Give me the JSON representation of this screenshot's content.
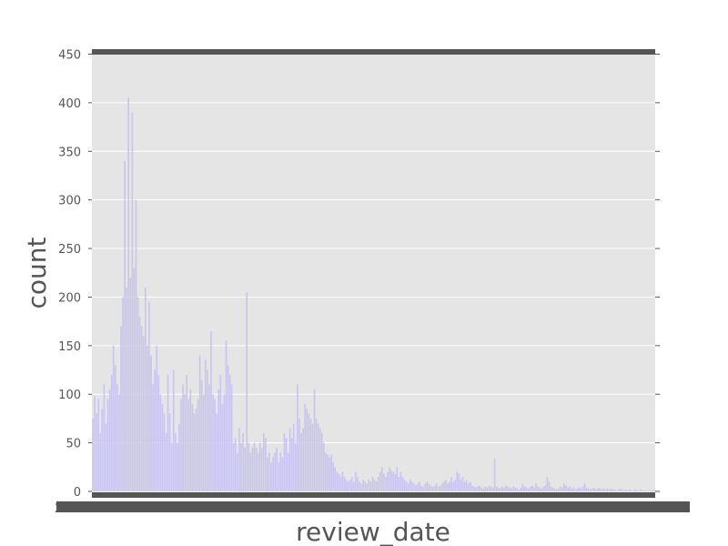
{
  "chart_data": {
    "type": "bar",
    "title": "",
    "xlabel": "review_date",
    "ylabel": "count",
    "ylim": [
      0,
      450
    ],
    "yticks": [
      0,
      50,
      100,
      150,
      200,
      250,
      300,
      350,
      400,
      450
    ],
    "grid": true,
    "legend": "none",
    "x_tick_labels_legible": false,
    "x_tick_label_edge_left": "2",
    "x_tick_label_edge_right": "4",
    "n_categories": 300,
    "values": [
      75,
      98,
      80,
      95,
      60,
      85,
      110,
      70,
      95,
      105,
      120,
      150,
      130,
      110,
      100,
      170,
      200,
      340,
      210,
      405,
      220,
      390,
      230,
      300,
      200,
      180,
      170,
      160,
      210,
      150,
      195,
      140,
      110,
      125,
      150,
      120,
      100,
      90,
      80,
      60,
      120,
      80,
      50,
      125,
      60,
      50,
      70,
      95,
      110,
      100,
      120,
      95,
      105,
      90,
      80,
      85,
      95,
      140,
      115,
      100,
      135,
      125,
      110,
      165,
      100,
      95,
      80,
      105,
      120,
      90,
      100,
      155,
      130,
      120,
      110,
      50,
      55,
      40,
      65,
      50,
      60,
      45,
      205,
      50,
      40,
      45,
      50,
      45,
      40,
      50,
      45,
      60,
      55,
      35,
      40,
      30,
      35,
      40,
      45,
      30,
      40,
      35,
      60,
      55,
      40,
      65,
      55,
      70,
      50,
      110,
      75,
      60,
      65,
      90,
      85,
      80,
      75,
      70,
      105,
      75,
      70,
      65,
      60,
      50,
      40,
      38,
      35,
      38,
      30,
      25,
      20,
      18,
      15,
      20,
      15,
      12,
      10,
      12,
      15,
      10,
      20,
      15,
      10,
      8,
      12,
      10,
      8,
      12,
      10,
      15,
      12,
      10,
      15,
      20,
      25,
      18,
      15,
      20,
      25,
      22,
      20,
      18,
      25,
      15,
      20,
      15,
      12,
      10,
      8,
      12,
      10,
      8,
      6,
      8,
      10,
      6,
      5,
      8,
      10,
      8,
      6,
      5,
      6,
      8,
      5,
      6,
      8,
      10,
      12,
      8,
      10,
      15,
      10,
      12,
      20,
      18,
      12,
      15,
      10,
      12,
      8,
      10,
      6,
      5,
      4,
      5,
      6,
      4,
      3,
      5,
      4,
      6,
      5,
      4,
      34,
      5,
      4,
      3,
      5,
      4,
      6,
      5,
      4,
      3,
      5,
      4,
      3,
      2,
      4,
      8,
      5,
      4,
      3,
      5,
      6,
      4,
      8,
      5,
      4,
      3,
      5,
      6,
      15,
      10,
      5,
      4,
      3,
      2,
      3,
      5,
      4,
      8,
      6,
      4,
      5,
      3,
      4,
      2,
      3,
      4,
      3,
      5,
      8,
      4,
      3,
      2,
      3,
      4,
      2,
      3,
      4,
      2,
      3,
      2,
      3,
      2,
      3,
      2,
      2,
      1,
      2,
      3,
      2,
      1,
      2,
      1,
      2,
      1,
      1,
      2,
      1,
      1,
      2,
      1,
      1,
      1,
      1,
      1,
      1,
      1
    ],
    "colors": {
      "plot_bg": "#e5e5e5",
      "grid": "#ffffff",
      "bar": "#c9c5ee",
      "frame": "#555555",
      "text": "#555555"
    }
  }
}
